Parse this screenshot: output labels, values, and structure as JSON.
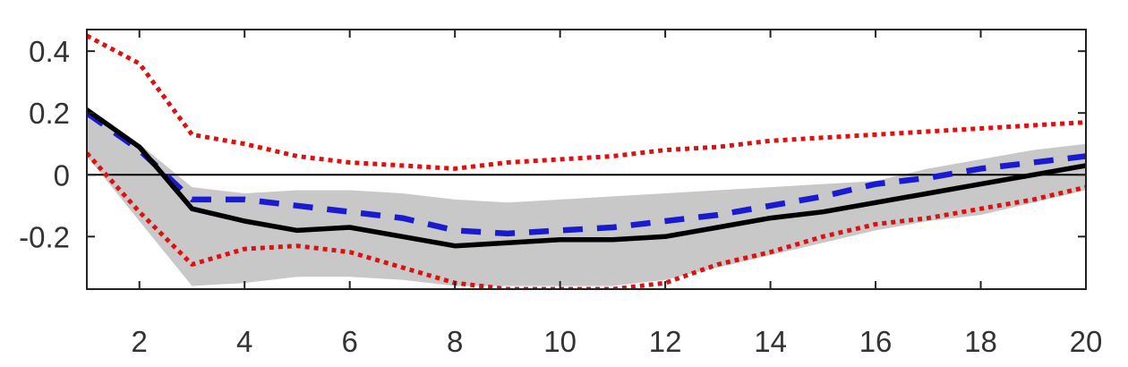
{
  "chart_data": {
    "type": "line",
    "title": "",
    "xlabel": "",
    "ylabel": "",
    "xlim": [
      1,
      20
    ],
    "ylim": [
      -0.37,
      0.47
    ],
    "x_ticks": [
      2,
      4,
      6,
      8,
      10,
      12,
      14,
      16,
      18,
      20
    ],
    "x_tick_labels": [
      "2",
      "4",
      "6",
      "8",
      "10",
      "12",
      "14",
      "16",
      "18",
      "20"
    ],
    "y_ticks": [
      0.4,
      0.2,
      0,
      -0.2
    ],
    "y_tick_labels": [
      "0.4",
      "0.2",
      "0",
      "-0.2"
    ],
    "zero_line": true,
    "grid": false,
    "legend": "none",
    "x": [
      1,
      2,
      3,
      4,
      5,
      6,
      7,
      8,
      9,
      10,
      11,
      12,
      13,
      14,
      15,
      16,
      17,
      18,
      19,
      20
    ],
    "series": [
      {
        "style": "band",
        "color": "#c8c8c8",
        "lower": [
          0.06,
          -0.15,
          -0.36,
          -0.35,
          -0.33,
          -0.33,
          -0.34,
          -0.36,
          -0.36,
          -0.36,
          -0.36,
          -0.34,
          -0.3,
          -0.26,
          -0.22,
          -0.18,
          -0.15,
          -0.13,
          -0.09,
          -0.05
        ],
        "upper": [
          0.22,
          0.1,
          -0.04,
          -0.06,
          -0.05,
          -0.05,
          -0.06,
          -0.08,
          -0.09,
          -0.08,
          -0.07,
          -0.06,
          -0.05,
          -0.04,
          -0.03,
          -0.02,
          0.02,
          0.05,
          0.08,
          0.1
        ]
      },
      {
        "style": "solid",
        "color": "#000000",
        "values": [
          0.21,
          0.09,
          -0.11,
          -0.15,
          -0.18,
          -0.17,
          -0.2,
          -0.23,
          -0.22,
          -0.21,
          -0.21,
          -0.2,
          -0.17,
          -0.14,
          -0.12,
          -0.09,
          -0.06,
          -0.03,
          0.0,
          0.03
        ]
      },
      {
        "style": "dashed",
        "color": "#1a1ad0",
        "values": [
          0.2,
          0.08,
          -0.08,
          -0.08,
          -0.1,
          -0.12,
          -0.14,
          -0.18,
          -0.19,
          -0.18,
          -0.17,
          -0.15,
          -0.13,
          -0.1,
          -0.07,
          -0.03,
          -0.01,
          0.02,
          0.04,
          0.06
        ]
      },
      {
        "style": "dotted",
        "color": "#e01010",
        "values": [
          0.45,
          0.36,
          0.13,
          0.1,
          0.06,
          0.04,
          0.03,
          0.02,
          0.04,
          0.05,
          0.06,
          0.08,
          0.09,
          0.11,
          0.12,
          0.13,
          0.14,
          0.15,
          0.16,
          0.17
        ]
      },
      {
        "style": "dotted",
        "color": "#e01010",
        "values": [
          0.07,
          -0.12,
          -0.29,
          -0.24,
          -0.23,
          -0.25,
          -0.3,
          -0.35,
          -0.37,
          -0.37,
          -0.37,
          -0.35,
          -0.29,
          -0.25,
          -0.2,
          -0.16,
          -0.14,
          -0.11,
          -0.08,
          -0.04
        ]
      }
    ]
  }
}
